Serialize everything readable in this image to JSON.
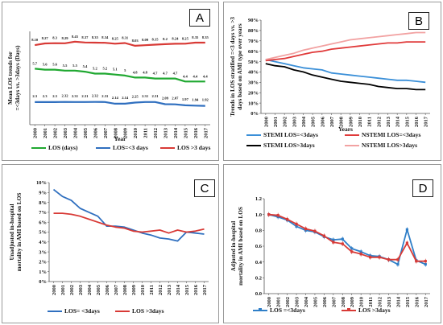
{
  "panels": {
    "A": {
      "label": "A"
    },
    "B": {
      "label": "B"
    },
    "C": {
      "label": "C"
    },
    "D": {
      "label": "D"
    }
  },
  "chart_data": [
    {
      "id": "A",
      "type": "line",
      "xlabel": "Year",
      "ylabel": "Mean LOS trends for =<3days vs. >3days (Days)",
      "x": [
        "2000",
        "2001",
        "2002",
        "2003",
        "2004",
        "2005",
        "2006",
        "2007",
        "2008",
        "2009",
        "2010",
        "2011",
        "2012",
        "2013",
        "2014",
        "2015",
        "2016",
        "2017"
      ],
      "ylim": [
        0,
        9.5
      ],
      "grid": false,
      "legend": "bottom",
      "series": [
        {
          "name": "LOS (days)",
          "color": "#1fa830",
          "values": [
            5.7,
            5.6,
            5.6,
            5.5,
            5.5,
            5.4,
            5.2,
            5.2,
            5.1,
            5.0,
            4.8,
            4.8,
            4.7,
            4.7,
            4.7,
            4.4,
            4.4,
            4.4
          ],
          "labels": [
            "5.7",
            "5.6",
            "5.6",
            "5.5",
            "5.5",
            "5.4",
            "5.2",
            "5.2",
            "5.1",
            "5",
            "4.8",
            "4.8",
            "4.7",
            "4.7",
            "4.7",
            "4.4",
            "4.4",
            "4.4"
          ]
        },
        {
          "name": "LOS=<3 days",
          "color": "#2f6fbf",
          "values": [
            2.3,
            2.3,
            2.3,
            2.32,
            2.31,
            2.31,
            2.32,
            2.31,
            2.14,
            2.14,
            2.25,
            2.31,
            2.31,
            2.09,
            2.07,
            1.97,
            1.94,
            1.92
          ],
          "labels": [
            "2.3",
            "2.3",
            "2.3",
            "2.32",
            "2.31",
            "2.31",
            "2.32",
            "2.31",
            "2.14",
            "2.14",
            "2.25",
            "2.31",
            "2.31",
            "2.09",
            "2.07",
            "1.97",
            "1.94",
            "1.92"
          ]
        },
        {
          "name": "LOS >3 days",
          "color": "#d83a36",
          "values": [
            8.1,
            8.27,
            8.3,
            8.29,
            8.45,
            8.37,
            8.35,
            8.34,
            8.25,
            8.31,
            8.03,
            8.09,
            8.15,
            8.2,
            8.24,
            8.25,
            8.35,
            8.35
          ],
          "labels": [
            "8.10",
            "8.27",
            "8.3",
            "8.29",
            "8.45",
            "8.37",
            "8.35",
            "8.34",
            "8.25",
            "8.31",
            "8.03",
            "8.09",
            "8.15",
            "8.2",
            "8.24",
            "8.25",
            "8.35",
            "8.35"
          ]
        }
      ]
    },
    {
      "id": "B",
      "type": "line",
      "xlabel": "Years",
      "ylabel": "Trends in LOS stratified =<3 days vs. >3 days based on AMI type over years",
      "x": [
        "2000",
        "2001",
        "2002",
        "2003",
        "2004",
        "2005",
        "2006",
        "2007",
        "2008",
        "2009",
        "2010",
        "2011",
        "2012",
        "2013",
        "2014",
        "2015",
        "2016",
        "2017"
      ],
      "yticks": [
        "0%",
        "10%",
        "20%",
        "30%",
        "40%",
        "50%",
        "60%",
        "70%",
        "80%",
        "90%"
      ],
      "ylim": [
        0,
        90
      ],
      "grid": false,
      "legend": "bottom",
      "series": [
        {
          "name": "STEMI LOS=<3days",
          "color": "#3a8fd8",
          "values": [
            52,
            50,
            48,
            46,
            44,
            43,
            42,
            39,
            38,
            37,
            36,
            35,
            34,
            33,
            32,
            32,
            31,
            30
          ]
        },
        {
          "name": "NSTEMI LOS=<3days",
          "color": "#e03a3a",
          "values": [
            51,
            52,
            53,
            55,
            57,
            59,
            60,
            62,
            63,
            64,
            65,
            66,
            67,
            68,
            68,
            69,
            69,
            69
          ]
        },
        {
          "name": "STEMI LOS>3days",
          "color": "#000000",
          "values": [
            48,
            46,
            45,
            42,
            40,
            37,
            35,
            33,
            31,
            30,
            29,
            28,
            26,
            25,
            24,
            24,
            23,
            23
          ]
        },
        {
          "name": "NSTEMI LOS>3days",
          "color": "#f2a2a2",
          "values": [
            52,
            54,
            56,
            58,
            61,
            63,
            65,
            67,
            69,
            71,
            72,
            73,
            74,
            75,
            76,
            77,
            78,
            78
          ]
        }
      ]
    },
    {
      "id": "C",
      "type": "line",
      "ylabel": "Unadjusted in-hospital mortality in AMI based on LOS",
      "x": [
        "2000",
        "2001",
        "2002",
        "2003",
        "2004",
        "2005",
        "2006",
        "2007",
        "2008",
        "2009",
        "2010",
        "2011",
        "2012",
        "2013",
        "2014",
        "2015",
        "2016",
        "2017"
      ],
      "yticks": [
        "0%",
        "1%",
        "2%",
        "3%",
        "4%",
        "5%",
        "6%",
        "7%",
        "8%",
        "9%",
        "10%"
      ],
      "ylim": [
        0,
        10
      ],
      "grid": false,
      "legend": "bottom",
      "series": [
        {
          "name": "LOS= <3days",
          "color": "#2f6fbf",
          "values": [
            9.3,
            8.6,
            8.2,
            7.4,
            7.0,
            6.6,
            5.6,
            5.6,
            5.5,
            5.2,
            4.9,
            4.7,
            4.4,
            4.3,
            4.1,
            5.0,
            4.9,
            4.8
          ]
        },
        {
          "name": "LOS >3days",
          "color": "#d83a36",
          "values": [
            6.9,
            6.9,
            6.8,
            6.6,
            6.3,
            6.0,
            5.7,
            5.5,
            5.4,
            5.1,
            5.0,
            5.1,
            5.2,
            4.9,
            5.2,
            5.0,
            5.1,
            5.3
          ]
        }
      ]
    },
    {
      "id": "D",
      "type": "line",
      "ylabel": "Adjusted in-hospital mortality in AMI based on LOS",
      "x": [
        "2000",
        "2001",
        "2002",
        "2003",
        "2004",
        "2005",
        "2006",
        "2007",
        "2008",
        "2009",
        "2010",
        "2011",
        "2012",
        "2013",
        "2014",
        "2015",
        "2016",
        "2017"
      ],
      "yticks": [
        "0.0",
        "0.2",
        "0.4",
        "0.6",
        "0.8",
        "1.0",
        "1.2"
      ],
      "ylim": [
        0,
        1.2
      ],
      "grid": false,
      "legend": "bottom",
      "series": [
        {
          "name": "LOS =<3days",
          "color": "#2f7fc8",
          "values": [
            1.0,
            0.97,
            0.93,
            0.85,
            0.8,
            0.78,
            0.72,
            0.68,
            0.69,
            0.57,
            0.53,
            0.48,
            0.47,
            0.43,
            0.37,
            0.81,
            0.42,
            0.37
          ]
        },
        {
          "name": "LOS >3days",
          "color": "#d83a36",
          "values": [
            1.0,
            0.99,
            0.94,
            0.88,
            0.82,
            0.79,
            0.73,
            0.65,
            0.63,
            0.53,
            0.5,
            0.46,
            0.46,
            0.43,
            0.43,
            0.64,
            0.41,
            0.41
          ]
        }
      ]
    }
  ]
}
